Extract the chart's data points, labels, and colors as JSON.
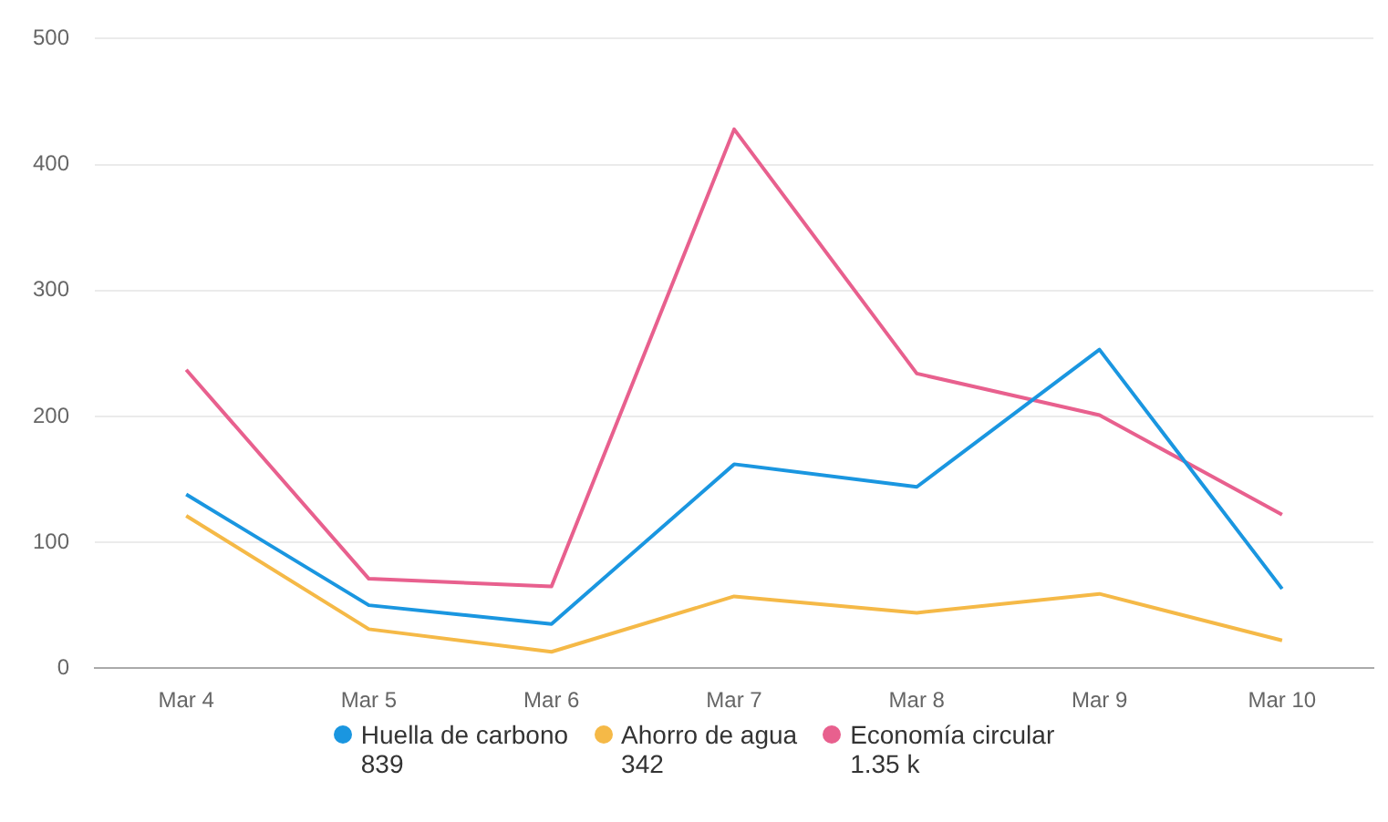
{
  "chart_data": {
    "type": "line",
    "categories": [
      "Mar 4",
      "Mar 5",
      "Mar 6",
      "Mar 7",
      "Mar 8",
      "Mar 9",
      "Mar 10"
    ],
    "series": [
      {
        "name": "Huella de carbono",
        "color": "#1a96e0",
        "values": [
          138,
          50,
          35,
          162,
          144,
          253,
          63
        ]
      },
      {
        "name": "Ahorro de agua",
        "color": "#f5b947",
        "values": [
          121,
          31,
          13,
          57,
          44,
          59,
          22
        ]
      },
      {
        "name": "Economía circular",
        "color": "#e8608e",
        "values": [
          237,
          71,
          65,
          428,
          234,
          201,
          122
        ]
      }
    ],
    "annotations": [
      "839",
      "342",
      "1.35 k"
    ],
    "ylim": [
      0,
      500
    ],
    "yticks": [
      0,
      100,
      200,
      300,
      400,
      500
    ],
    "grid": "y",
    "legend": "bottom",
    "marker": "none",
    "line_style": "solid"
  }
}
